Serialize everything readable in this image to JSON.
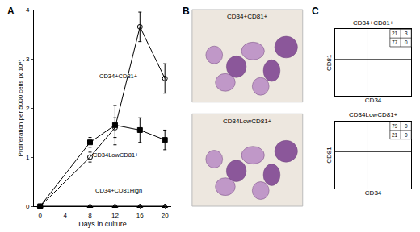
{
  "chart_data": [
    {
      "type": "line",
      "panel_label": "A",
      "x_label": "Days in culture",
      "y_label": "Proliferation per 5000 cells (x 10⁴)",
      "x": [
        0,
        8,
        12,
        16,
        20
      ],
      "xlim": [
        -1,
        21
      ],
      "xticks": [
        0,
        4,
        8,
        12,
        16,
        20
      ],
      "ylim": [
        0,
        4
      ],
      "yticks": [
        0,
        1,
        2,
        3,
        4
      ],
      "grid": false,
      "series": [
        {
          "name": "CD34+CD81+",
          "color": "#000000",
          "marker": "circle-open",
          "values": [
            0,
            1.0,
            1.6,
            3.65,
            2.6
          ],
          "errors": [
            0,
            0.1,
            0.2,
            0.3,
            0.3
          ]
        },
        {
          "name": "CD34LowCD81+",
          "color": "#000000",
          "marker": "square",
          "values": [
            0,
            1.3,
            1.65,
            1.55,
            1.35
          ],
          "errors": [
            0,
            0.1,
            0.4,
            0.25,
            0.2
          ]
        },
        {
          "name": "CD34+CD81High",
          "color": "#000000",
          "marker": "triangle-up-open",
          "values": [
            0,
            0,
            0,
            0,
            0
          ],
          "errors": [
            0,
            0,
            0,
            0,
            0
          ]
        }
      ]
    },
    {
      "type": "scatter",
      "panel_label": "C",
      "title": "CD34+CD81+",
      "x_label": "CD34",
      "y_label": "CD81",
      "tick_labels": false,
      "quadrants": {
        "upper_left": 21,
        "upper_right": 3,
        "lower_left": 77,
        "lower_right": 0
      }
    },
    {
      "type": "scatter",
      "title": "CD34LowCD81+",
      "x_label": "CD34",
      "y_label": "CD81",
      "tick_labels": false,
      "quadrants": {
        "upper_left": 79,
        "upper_right": 0,
        "lower_left": 21,
        "lower_right": 0
      }
    }
  ],
  "images": {
    "panel_label": "B",
    "items": [
      {
        "label": "CD34+CD81+"
      },
      {
        "label": "CD34LowCD81+"
      }
    ]
  }
}
